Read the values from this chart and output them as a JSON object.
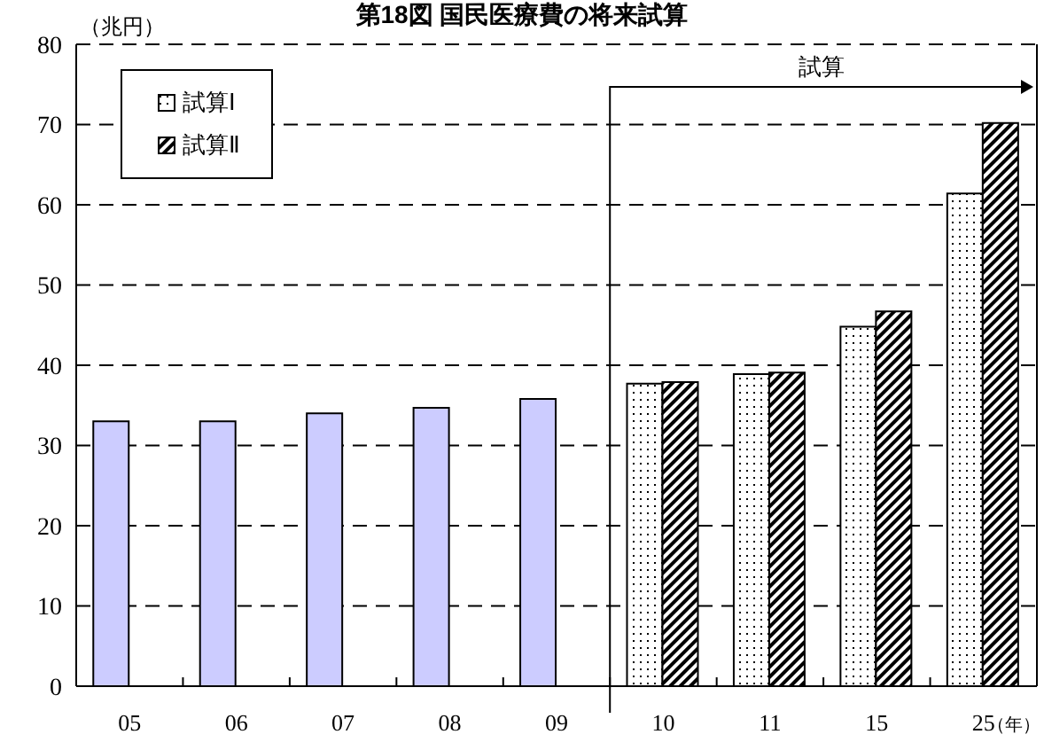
{
  "chart_data": {
    "type": "bar",
    "title": "第18図 国民医療費の将来試算",
    "ylabel": "（兆円）",
    "xlabel": "（年）",
    "categories": [
      "05",
      "06",
      "07",
      "08",
      "09",
      "10",
      "11",
      "15",
      "25"
    ],
    "series": [
      {
        "color": "#ccccff",
        "values": [
          33.0,
          33.0,
          34.0,
          34.7,
          35.8,
          null,
          null,
          null,
          null
        ]
      },
      {
        "name": "試算Ⅰ",
        "color": "#000000",
        "values": [
          null,
          null,
          null,
          null,
          null,
          37.7,
          38.9,
          44.8,
          61.4
        ]
      },
      {
        "name": "試算Ⅱ",
        "color": "#000000",
        "values": [
          null,
          null,
          null,
          null,
          null,
          37.9,
          39.1,
          46.7,
          70.2
        ]
      }
    ],
    "ylim": [
      0,
      80
    ],
    "yticks": [
      0,
      10,
      20,
      30,
      40,
      50,
      60,
      70,
      80
    ],
    "grid": "y",
    "legend": "top left",
    "annotations": [
      "試算"
    ]
  }
}
